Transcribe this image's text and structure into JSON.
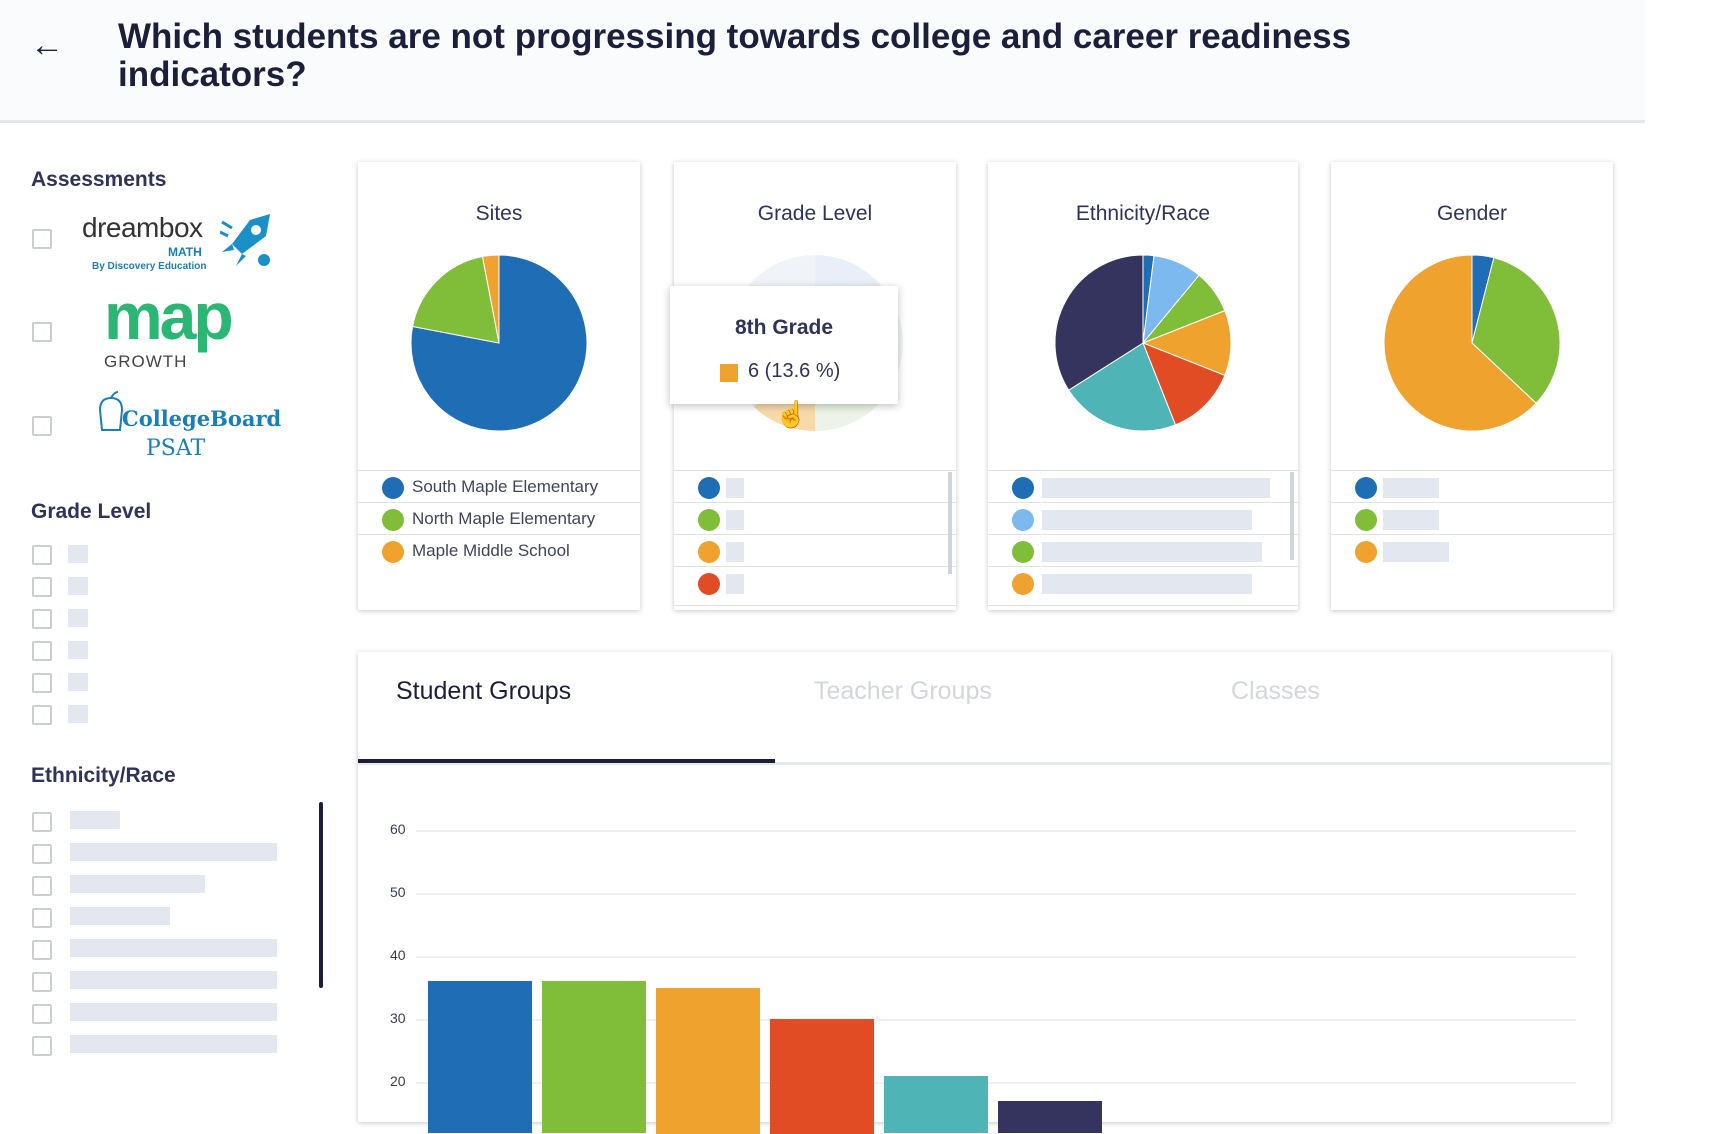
{
  "header": {
    "back_icon": "arrow-left-icon",
    "title": "Which students are not progressing towards college and career readiness indicators?"
  },
  "sidebar": {
    "assessments_heading": "Assessments",
    "assessments": [
      {
        "name": "dreambox",
        "logo_text": "dreambox",
        "sub_text": "MATH",
        "tag": "By Discovery Education"
      },
      {
        "name": "map",
        "logo_text": "map",
        "sub_text": "GROWTH"
      },
      {
        "name": "collegeboard",
        "logo_text": "CollegeBoard",
        "sub_text": "PSAT"
      }
    ],
    "grade_heading": "Grade Level",
    "ethnicity_heading": "Ethnicity/Race"
  },
  "cards": {
    "sites": {
      "title": "Sites",
      "legend": [
        {
          "label": "South Maple Elementary",
          "color": "#1f6db5"
        },
        {
          "label": "North Maple Elementary",
          "color": "#80be3a"
        },
        {
          "label": "Maple Middle School",
          "color": "#f0a22e"
        }
      ],
      "slices": [
        {
          "value": 78,
          "color": "#1f6db5"
        },
        {
          "value": 19,
          "color": "#80be3a"
        },
        {
          "value": 3,
          "color": "#f0a22e"
        }
      ]
    },
    "grade": {
      "title": "Grade Level",
      "tooltip_title": "8th Grade",
      "tooltip_value": "6 (13.6 %)",
      "legend_colors": [
        "#1f6db5",
        "#80be3a",
        "#f0a22e",
        "#e24c24"
      ]
    },
    "ethnicity": {
      "title": "Ethnicity/Race",
      "slices": [
        {
          "value": 2,
          "color": "#1f6db5"
        },
        {
          "value": 9,
          "color": "#7cb9ee"
        },
        {
          "value": 8,
          "color": "#80be3a"
        },
        {
          "value": 12,
          "color": "#f0a22e"
        },
        {
          "value": 13,
          "color": "#e24c24"
        },
        {
          "value": 22,
          "color": "#4eb4b6"
        },
        {
          "value": 34,
          "color": "#35345f"
        }
      ],
      "legend_colors": [
        "#1f6db5",
        "#7cb9ee",
        "#80be3a",
        "#f0a22e"
      ]
    },
    "gender": {
      "title": "Gender",
      "slices": [
        {
          "value": 4,
          "color": "#1f6db5"
        },
        {
          "value": 33,
          "color": "#80be3a"
        },
        {
          "value": 63,
          "color": "#f0a22e"
        }
      ],
      "legend_colors": [
        "#1f6db5",
        "#80be3a",
        "#f0a22e"
      ]
    }
  },
  "tabs": [
    {
      "label": "Student Groups",
      "active": true
    },
    {
      "label": "Teacher Groups",
      "active": false
    },
    {
      "label": "Classes",
      "active": false
    }
  ],
  "chart_data": {
    "type": "bar",
    "title": "",
    "ylim": [
      15,
      60
    ],
    "yticks": [
      "60",
      "50",
      "40",
      "30",
      "20"
    ],
    "grid": true,
    "values": [
      36,
      36,
      35,
      30,
      21,
      17
    ],
    "colors": [
      "#1f6db5",
      "#80be3a",
      "#f0a22e",
      "#e24c24",
      "#4eb4b6",
      "#35345f"
    ]
  },
  "pie_colors_hint": {
    "blue": "#1f6db5",
    "green": "#80be3a",
    "orange": "#f0a22e",
    "red": "#e24c24",
    "teal": "#4eb4b6",
    "navy": "#35345f",
    "light_blue": "#7cb9ee"
  }
}
